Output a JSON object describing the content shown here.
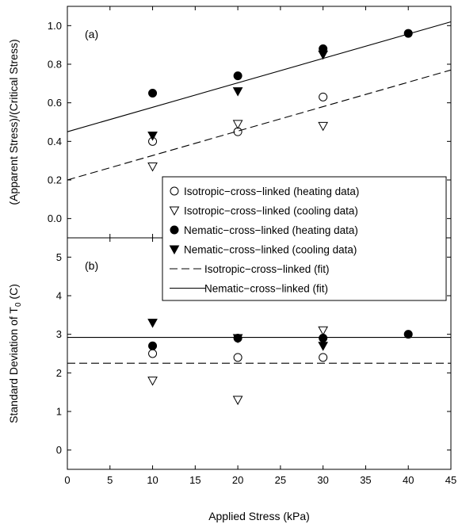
{
  "chart_data": [
    {
      "panel": "(a)",
      "type": "scatter",
      "ylabel": "(Apparent Stress)/(Critical Stress)",
      "xlim": [
        0,
        45
      ],
      "ylim": [
        -0.1,
        1.1
      ],
      "yticks": [
        "0.0",
        "0.2",
        "0.4",
        "0.6",
        "0.8",
        "1.0"
      ],
      "series": [
        {
          "name": "Isotropic−cross−linked (heating data)",
          "marker": "circle-open",
          "x": [
            10,
            20,
            30
          ],
          "y": [
            0.4,
            0.45,
            0.63
          ]
        },
        {
          "name": "Isotropic−cross−linked (cooling data)",
          "marker": "triangle-down-open",
          "x": [
            10,
            20,
            30
          ],
          "y": [
            0.27,
            0.49,
            0.48
          ]
        },
        {
          "name": "Nematic−cross−linked (heating data)",
          "marker": "circle-filled",
          "x": [
            10,
            20,
            30,
            40
          ],
          "y": [
            0.65,
            0.74,
            0.88,
            0.96
          ]
        },
        {
          "name": "Nematic−cross−linked (cooling data)",
          "marker": "triangle-down-filled",
          "x": [
            10,
            20,
            30
          ],
          "y": [
            0.43,
            0.66,
            0.85
          ]
        },
        {
          "name": "Isotropic−cross−linked (fit)",
          "line": "dashed",
          "x": [
            0,
            45
          ],
          "y": [
            0.2,
            0.77
          ]
        },
        {
          "name": "Nematic−cross−linked (fit)",
          "line": "solid",
          "x": [
            0,
            45
          ],
          "y": [
            0.45,
            1.02
          ]
        }
      ]
    },
    {
      "panel": "(b)",
      "type": "scatter",
      "ylabel": "Standard Deviation of T",
      "ylabel_sub": "0",
      "ylabel_unit": " (C)",
      "xlabel": "Applied Stress (kPa)",
      "xlim": [
        0,
        45
      ],
      "ylim": [
        -0.5,
        5.5
      ],
      "xticks": [
        "0",
        "5",
        "10",
        "15",
        "20",
        "25",
        "30",
        "35",
        "40",
        "45"
      ],
      "yticks": [
        "0",
        "1",
        "2",
        "3",
        "4",
        "5"
      ],
      "series": [
        {
          "name": "Isotropic−cross−linked (heating data)",
          "marker": "circle-open",
          "x": [
            10,
            20,
            30
          ],
          "y": [
            2.5,
            2.4,
            2.4
          ]
        },
        {
          "name": "Isotropic−cross−linked (cooling data)",
          "marker": "triangle-down-open",
          "x": [
            10,
            20,
            30
          ],
          "y": [
            1.8,
            1.3,
            3.1
          ]
        },
        {
          "name": "Nematic−cross−linked (heating data)",
          "marker": "circle-filled",
          "x": [
            10,
            20,
            30,
            40
          ],
          "y": [
            2.7,
            2.9,
            2.9,
            3.0
          ]
        },
        {
          "name": "Nematic−cross−linked (cooling data)",
          "marker": "triangle-down-filled",
          "x": [
            10,
            20,
            30
          ],
          "y": [
            3.3,
            2.9,
            2.7
          ]
        },
        {
          "name": "Isotropic−cross−linked (fit)",
          "line": "dashed",
          "x": [
            0,
            45
          ],
          "y": [
            2.25,
            2.25
          ]
        },
        {
          "name": "Nematic−cross−linked (fit)",
          "line": "solid",
          "x": [
            0,
            45
          ],
          "y": [
            2.92,
            2.92
          ]
        }
      ]
    }
  ],
  "legend": {
    "placement": "right, straddling both panels",
    "entries": [
      "Isotropic−cross−linked (heating data)",
      "Isotropic−cross−linked (cooling data)",
      "Nematic−cross−linked (heating data)",
      "Nematic−cross−linked (cooling data)",
      "Isotropic−cross−linked (fit)",
      "Nematic−cross−linked (fit)"
    ]
  }
}
